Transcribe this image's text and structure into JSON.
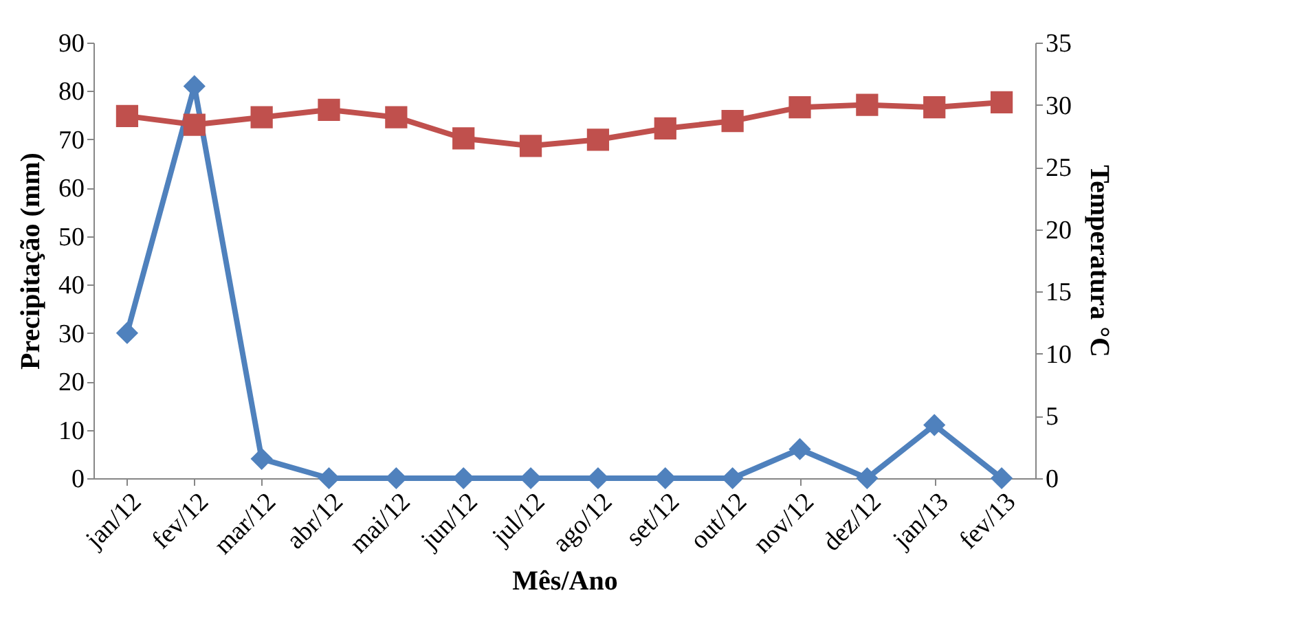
{
  "chart_data": {
    "type": "line",
    "xlabel": "Mês/Ano",
    "ylabel": "Precipitação (mm)",
    "y2label": "Temperatura °C",
    "categories": [
      "jan/12",
      "fev/12",
      "mar/12",
      "abr/12",
      "mai/12",
      "jun/12",
      "jul/12",
      "ago/12",
      "set/12",
      "out/12",
      "nov/12",
      "dez/12",
      "jan/13",
      "fev/13"
    ],
    "series": [
      {
        "color": "#4f81bd",
        "marker": "diamond",
        "values": [
          30,
          81,
          4,
          0,
          0,
          0,
          0,
          0,
          0,
          0,
          6,
          0,
          11,
          0
        ]
      },
      {
        "color": "#c0504d",
        "marker": "square",
        "axis": "y2",
        "values": [
          29.1,
          28.4,
          29.0,
          29.6,
          29.0,
          27.3,
          26.7,
          27.2,
          28.1,
          28.7,
          29.8,
          30.0,
          29.8,
          30.2
        ]
      }
    ],
    "ylim": [
      0,
      90
    ],
    "yticks": [
      0,
      10,
      20,
      30,
      40,
      50,
      60,
      70,
      80,
      90
    ],
    "y2lim": [
      0,
      35
    ],
    "y2ticks": [
      0,
      5,
      10,
      15,
      20,
      25,
      30,
      35
    ],
    "grid": false
  }
}
